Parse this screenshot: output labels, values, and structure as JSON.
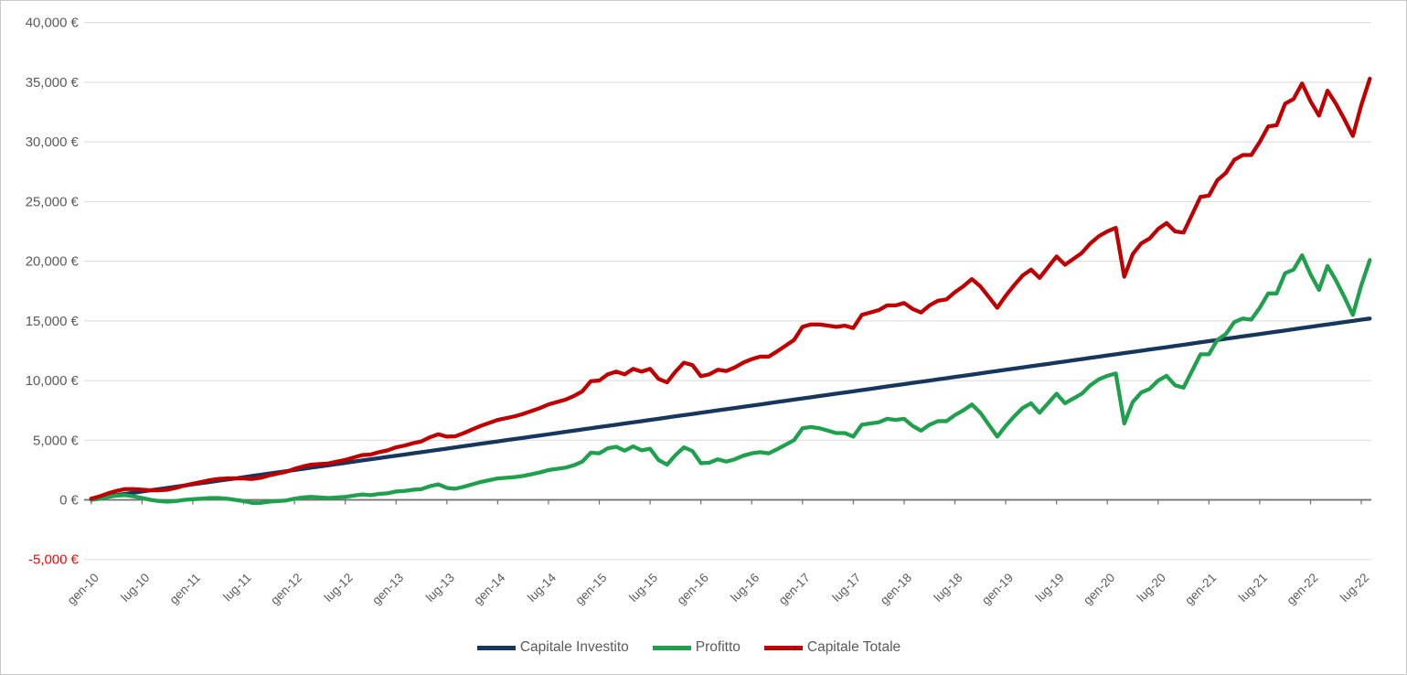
{
  "chart_data": {
    "type": "line",
    "grid": "horizontal",
    "legend_position": "bottom",
    "x_axis": {
      "unit": "month",
      "tick_every_months": 6,
      "tick_labels": [
        "gen-10",
        "lug-10",
        "gen-11",
        "lug-11",
        "gen-12",
        "lug-12",
        "gen-13",
        "lug-13",
        "gen-14",
        "lug-14",
        "gen-15",
        "lug-15",
        "gen-16",
        "lug-16",
        "gen-17",
        "lug-17",
        "gen-18",
        "lug-18",
        "gen-19",
        "lug-19",
        "gen-20",
        "lug-20",
        "gen-21",
        "lug-21",
        "gen-22",
        "lug-22"
      ],
      "categories": [
        "gen-10",
        "feb-10",
        "mar-10",
        "apr-10",
        "mag-10",
        "giu-10",
        "lug-10",
        "ago-10",
        "set-10",
        "ott-10",
        "nov-10",
        "dic-10",
        "gen-11",
        "feb-11",
        "mar-11",
        "apr-11",
        "mag-11",
        "giu-11",
        "lug-11",
        "ago-11",
        "set-11",
        "ott-11",
        "nov-11",
        "dic-11",
        "gen-12",
        "feb-12",
        "mar-12",
        "apr-12",
        "mag-12",
        "giu-12",
        "lug-12",
        "ago-12",
        "set-12",
        "ott-12",
        "nov-12",
        "dic-12",
        "gen-13",
        "feb-13",
        "mar-13",
        "apr-13",
        "mag-13",
        "giu-13",
        "lug-13",
        "ago-13",
        "set-13",
        "ott-13",
        "nov-13",
        "dic-13",
        "gen-14",
        "feb-14",
        "mar-14",
        "apr-14",
        "mag-14",
        "giu-14",
        "lug-14",
        "ago-14",
        "set-14",
        "ott-14",
        "nov-14",
        "dic-14",
        "gen-15",
        "feb-15",
        "mar-15",
        "apr-15",
        "mag-15",
        "giu-15",
        "lug-15",
        "ago-15",
        "set-15",
        "ott-15",
        "nov-15",
        "dic-15",
        "gen-16",
        "feb-16",
        "mar-16",
        "apr-16",
        "mag-16",
        "giu-16",
        "lug-16",
        "ago-16",
        "set-16",
        "ott-16",
        "nov-16",
        "dic-16",
        "gen-17",
        "feb-17",
        "mar-17",
        "apr-17",
        "mag-17",
        "giu-17",
        "lug-17",
        "ago-17",
        "set-17",
        "ott-17",
        "nov-17",
        "dic-17",
        "gen-18",
        "feb-18",
        "mar-18",
        "apr-18",
        "mag-18",
        "giu-18",
        "lug-18",
        "ago-18",
        "set-18",
        "ott-18",
        "nov-18",
        "dic-18",
        "gen-19",
        "feb-19",
        "mar-19",
        "apr-19",
        "mag-19",
        "giu-19",
        "lug-19",
        "ago-19",
        "set-19",
        "ott-19",
        "nov-19",
        "dic-19",
        "gen-20",
        "feb-20",
        "mar-20",
        "apr-20",
        "mag-20",
        "giu-20",
        "lug-20",
        "ago-20",
        "set-20",
        "ott-20",
        "nov-20",
        "dic-20",
        "gen-21",
        "feb-21",
        "mar-21",
        "apr-21",
        "mag-21",
        "giu-21",
        "lug-21",
        "ago-21",
        "set-21",
        "ott-21",
        "nov-21",
        "dic-21",
        "gen-22",
        "feb-22",
        "mar-22",
        "apr-22",
        "mag-22",
        "giu-22",
        "lug-22",
        "ago-22"
      ]
    },
    "y_axis": {
      "min": -5000,
      "max": 40000,
      "step": 5000,
      "tick_labels": [
        "40,000 €",
        "35,000 €",
        "30,000 €",
        "25,000 €",
        "20,000 €",
        "15,000 €",
        "10,000 €",
        "5,000 €",
        "0 €",
        "-5,000 €"
      ]
    },
    "series": [
      {
        "name": "Capitale Investito",
        "color": "#17365d",
        "values": [
          100,
          200,
          300,
          400,
          500,
          600,
          700,
          800,
          900,
          1000,
          1100,
          1200,
          1300,
          1400,
          1500,
          1600,
          1700,
          1800,
          1900,
          2000,
          2100,
          2200,
          2300,
          2400,
          2500,
          2600,
          2700,
          2800,
          2900,
          3000,
          3100,
          3200,
          3300,
          3400,
          3500,
          3600,
          3700,
          3800,
          3900,
          4000,
          4100,
          4200,
          4300,
          4400,
          4500,
          4600,
          4700,
          4800,
          4900,
          5000,
          5100,
          5200,
          5300,
          5400,
          5500,
          5600,
          5700,
          5800,
          5900,
          6000,
          6100,
          6200,
          6300,
          6400,
          6500,
          6600,
          6700,
          6800,
          6900,
          7000,
          7100,
          7200,
          7300,
          7400,
          7500,
          7600,
          7700,
          7800,
          7900,
          8000,
          8100,
          8200,
          8300,
          8400,
          8500,
          8600,
          8700,
          8800,
          8900,
          9000,
          9100,
          9200,
          9300,
          9400,
          9500,
          9600,
          9700,
          9800,
          9900,
          10000,
          10100,
          10200,
          10300,
          10400,
          10500,
          10600,
          10700,
          10800,
          10900,
          11000,
          11100,
          11200,
          11300,
          11400,
          11500,
          11600,
          11700,
          11800,
          11900,
          12000,
          12100,
          12200,
          12300,
          12400,
          12500,
          12600,
          12700,
          12800,
          12900,
          13000,
          13100,
          13200,
          13300,
          13400,
          13500,
          13600,
          13700,
          13800,
          13900,
          14000,
          14100,
          14200,
          14300,
          14400,
          14500,
          14600,
          14700,
          14800,
          14900,
          15000,
          15100,
          15200
        ]
      },
      {
        "name": "Profitto",
        "color": "#1fa04d",
        "values": [
          0,
          100,
          250,
          350,
          400,
          300,
          150,
          0,
          -100,
          -150,
          -100,
          0,
          50,
          100,
          150,
          150,
          100,
          0,
          -100,
          -250,
          -250,
          -150,
          -100,
          -50,
          100,
          200,
          250,
          200,
          150,
          200,
          250,
          350,
          450,
          400,
          500,
          550,
          700,
          750,
          850,
          900,
          1150,
          1300,
          1000,
          930,
          1100,
          1300,
          1500,
          1650,
          1800,
          1850,
          1900,
          2000,
          2150,
          2300,
          2500,
          2600,
          2700,
          2900,
          3200,
          3950,
          3900,
          4320,
          4450,
          4120,
          4480,
          4150,
          4280,
          3340,
          2950,
          3750,
          4400,
          4090,
          3070,
          3120,
          3400,
          3200,
          3400,
          3700,
          3900,
          4000,
          3900,
          4240,
          4620,
          5000,
          6000,
          6100,
          6000,
          5800,
          5600,
          5600,
          5300,
          6300,
          6400,
          6500,
          6800,
          6700,
          6800,
          6200,
          5800,
          6300,
          6600,
          6600,
          7100,
          7500,
          8000,
          7300,
          6300,
          5300,
          6200,
          7000,
          7700,
          8100,
          7300,
          8100,
          8900,
          8100,
          8500,
          8900,
          9600,
          10100,
          10400,
          10600,
          6400,
          8200,
          9000,
          9300,
          10000,
          10400,
          9600,
          9400,
          10800,
          12200,
          12200,
          13400,
          13900,
          14900,
          15200,
          15100,
          16100,
          17300,
          17300,
          19000,
          19300,
          20500,
          18900,
          17600,
          19600,
          18400,
          17000,
          15500,
          18000,
          20100
        ]
      },
      {
        "name": "Capitale Totale",
        "color": "#c00000",
        "values": [
          100,
          300,
          550,
          750,
          900,
          900,
          850,
          800,
          800,
          850,
          1000,
          1200,
          1350,
          1500,
          1650,
          1750,
          1800,
          1800,
          1800,
          1750,
          1850,
          2050,
          2200,
          2350,
          2600,
          2800,
          2950,
          3000,
          3050,
          3200,
          3350,
          3550,
          3750,
          3800,
          4000,
          4150,
          4400,
          4550,
          4750,
          4900,
          5250,
          5500,
          5300,
          5330,
          5600,
          5900,
          6200,
          6450,
          6700,
          6850,
          7000,
          7200,
          7450,
          7700,
          8000,
          8200,
          8400,
          8700,
          9100,
          9950,
          10000,
          10520,
          10750,
          10520,
          10980,
          10750,
          10980,
          10140,
          9850,
          10750,
          11500,
          11290,
          10370,
          10520,
          10900,
          10800,
          11100,
          11500,
          11800,
          12000,
          12000,
          12440,
          12920,
          13400,
          14500,
          14700,
          14700,
          14600,
          14500,
          14600,
          14400,
          15500,
          15700,
          15900,
          16300,
          16300,
          16500,
          16000,
          15700,
          16300,
          16700,
          16800,
          17400,
          17900,
          18500,
          17900,
          17000,
          16100,
          17100,
          18000,
          18800,
          19300,
          18600,
          19500,
          20400,
          19700,
          20200,
          20700,
          21500,
          22100,
          22500,
          22800,
          18700,
          20600,
          21500,
          21900,
          22700,
          23200,
          22500,
          22400,
          23900,
          25400,
          25500,
          26800,
          27400,
          28500,
          28900,
          28900,
          30000,
          31300,
          31400,
          33200,
          33600,
          34900,
          33400,
          32200,
          34300,
          33200,
          31900,
          30500,
          33100,
          35300
        ]
      }
    ],
    "style": {
      "gridline_color": "#d9d9d9",
      "zero_axis_color": "#6e6e6e",
      "tick_label_color": "#595959",
      "negative_tick_label_color": "#ff0000",
      "background": "#ffffff",
      "frame_border_color": "#c9c9c9"
    }
  }
}
